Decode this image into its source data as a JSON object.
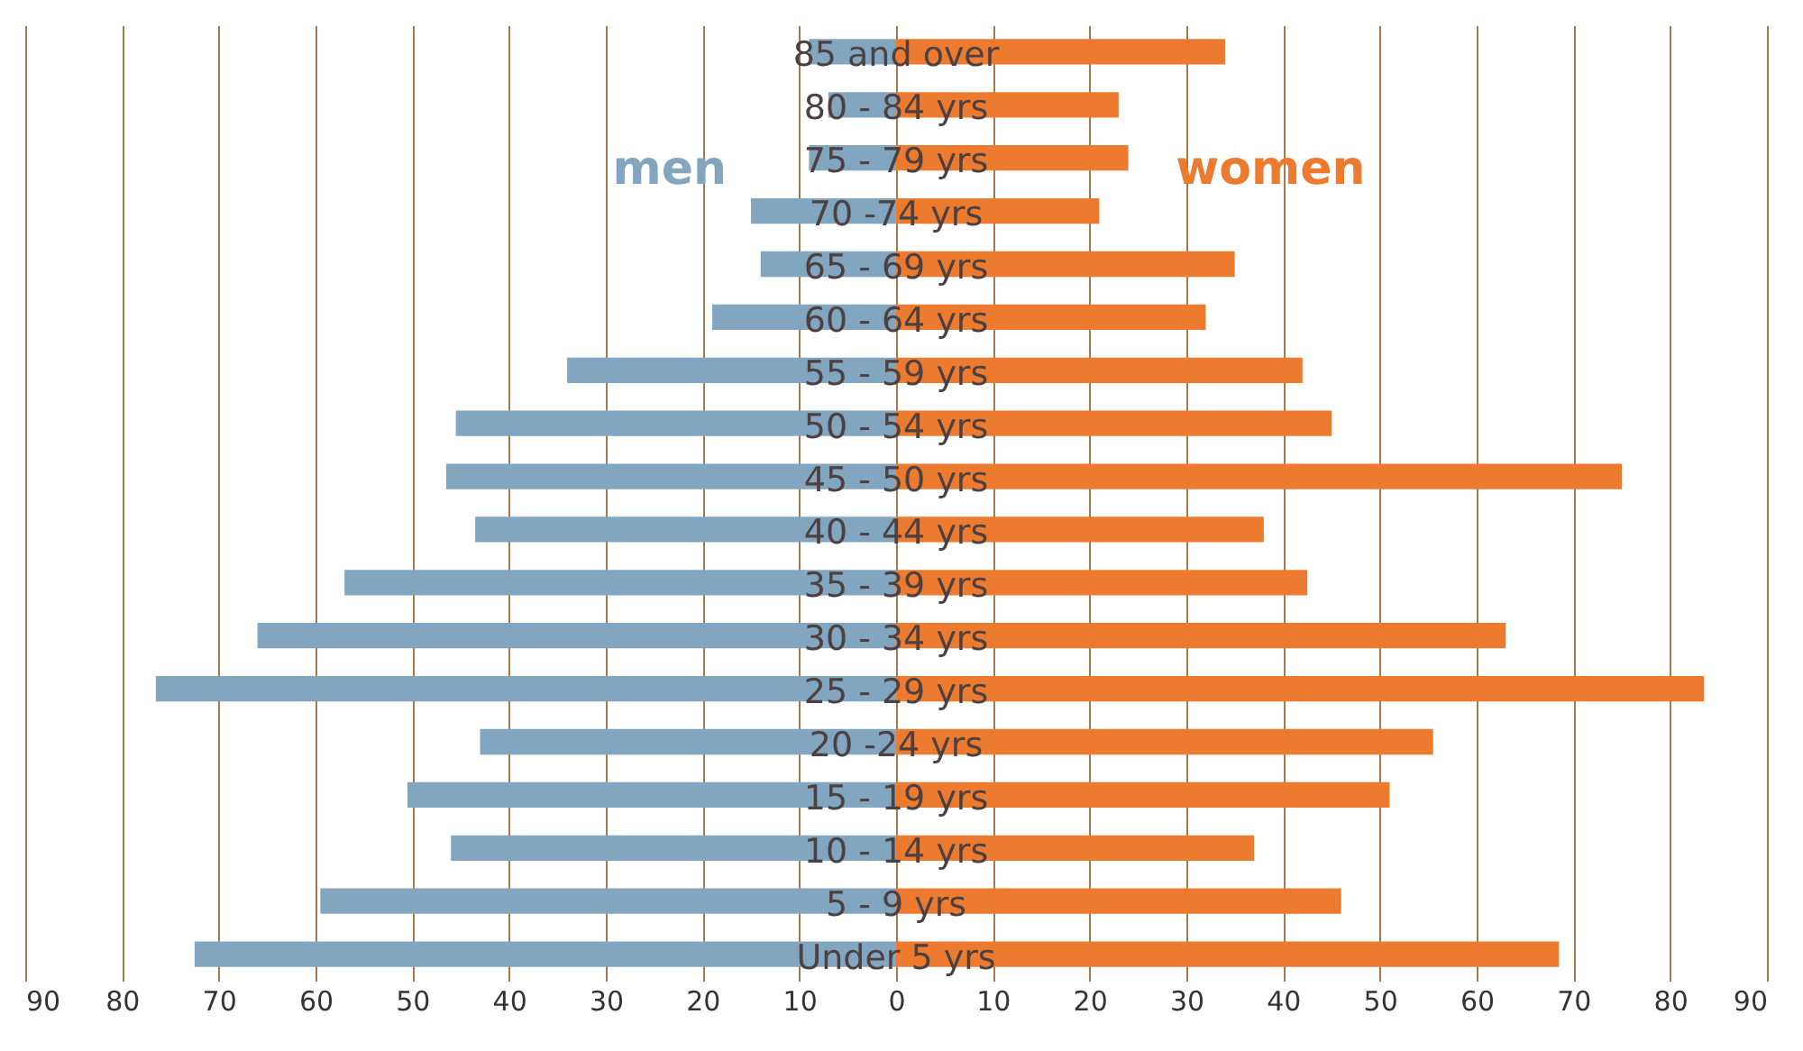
{
  "chart_data": {
    "type": "bar",
    "orientation": "horizontal",
    "categories": [
      "85 and over",
      "80 - 84 yrs",
      "75 - 79 yrs",
      "70 -74 yrs",
      "65 - 69 yrs",
      "60 - 64 yrs",
      "55 - 59 yrs",
      "50 - 54 yrs",
      "45 - 50 yrs",
      "40 - 44 yrs",
      "35 - 39 yrs",
      "30 - 34 yrs",
      "25 - 29 yrs",
      "20 -24 yrs",
      "15 - 19 yrs",
      "10 - 14 yrs",
      "5 - 9 yrs",
      "Under 5 yrs"
    ],
    "series": [
      {
        "name": "men",
        "color": "#82a5c0",
        "values": [
          -9,
          -7,
          -9,
          -15,
          -14,
          -19,
          -34,
          -45.5,
          -46.5,
          -43.5,
          -57,
          -66,
          -76.5,
          -43,
          -50.5,
          -46,
          -59.5,
          -72.5
        ]
      },
      {
        "name": "women",
        "color": "#ec7b30",
        "values": [
          34,
          23,
          24,
          21,
          35,
          32,
          42,
          45,
          75,
          38,
          42.5,
          63,
          83.5,
          55.5,
          51,
          37,
          46,
          68.5
        ]
      }
    ],
    "xlim": [
      -90,
      90
    ],
    "xticks": [
      {
        "value": -90,
        "label": "90"
      },
      {
        "value": -80,
        "label": "80"
      },
      {
        "value": -70,
        "label": "70"
      },
      {
        "value": -60,
        "label": "60"
      },
      {
        "value": -50,
        "label": "50"
      },
      {
        "value": -40,
        "label": "40"
      },
      {
        "value": -30,
        "label": "30"
      },
      {
        "value": -20,
        "label": "20"
      },
      {
        "value": -10,
        "label": "10"
      },
      0,
      10,
      20,
      30,
      40,
      50,
      60,
      70,
      80,
      90
    ],
    "grid": "x",
    "legend": false,
    "stacked": true
  }
}
